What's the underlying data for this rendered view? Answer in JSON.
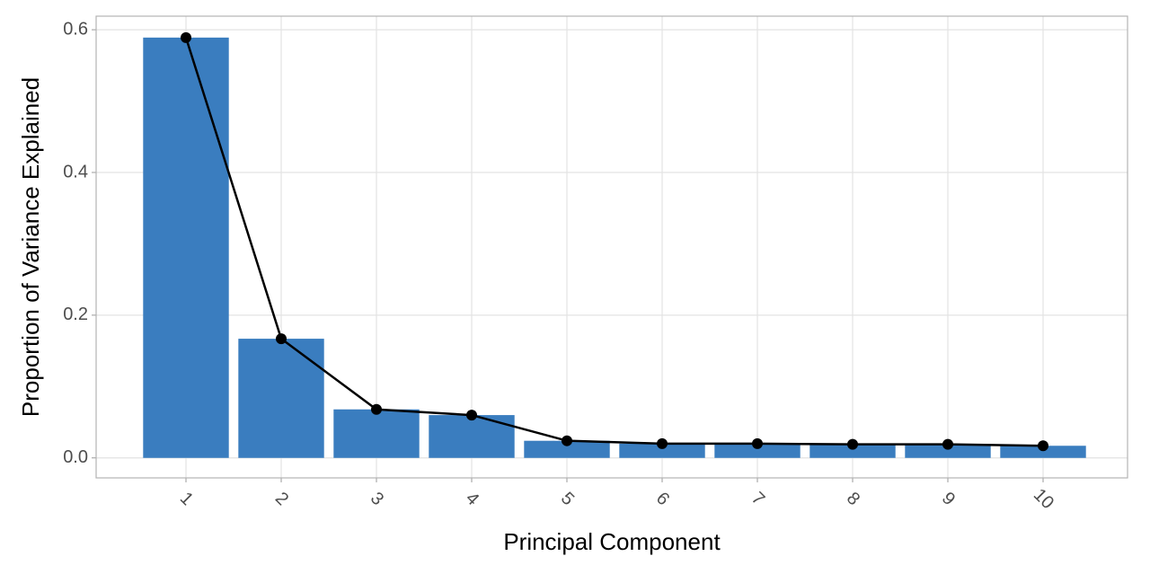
{
  "chart_data": {
    "type": "bar",
    "x_label": "Principal Component",
    "y_label": "Proportion of Variance Explained",
    "categories": [
      "1",
      "2",
      "3",
      "4",
      "5",
      "6",
      "7",
      "8",
      "9",
      "10"
    ],
    "values": [
      0.589,
      0.167,
      0.068,
      0.06,
      0.024,
      0.02,
      0.02,
      0.019,
      0.019,
      0.017
    ],
    "color": "#3a7dbf",
    "line_color": "#000000",
    "ylim": [
      -0.028,
      0.619
    ],
    "yticks": [
      {
        "value": 0,
        "label": "0.0"
      },
      0.2,
      0.4,
      0.6
    ],
    "grid": true
  }
}
